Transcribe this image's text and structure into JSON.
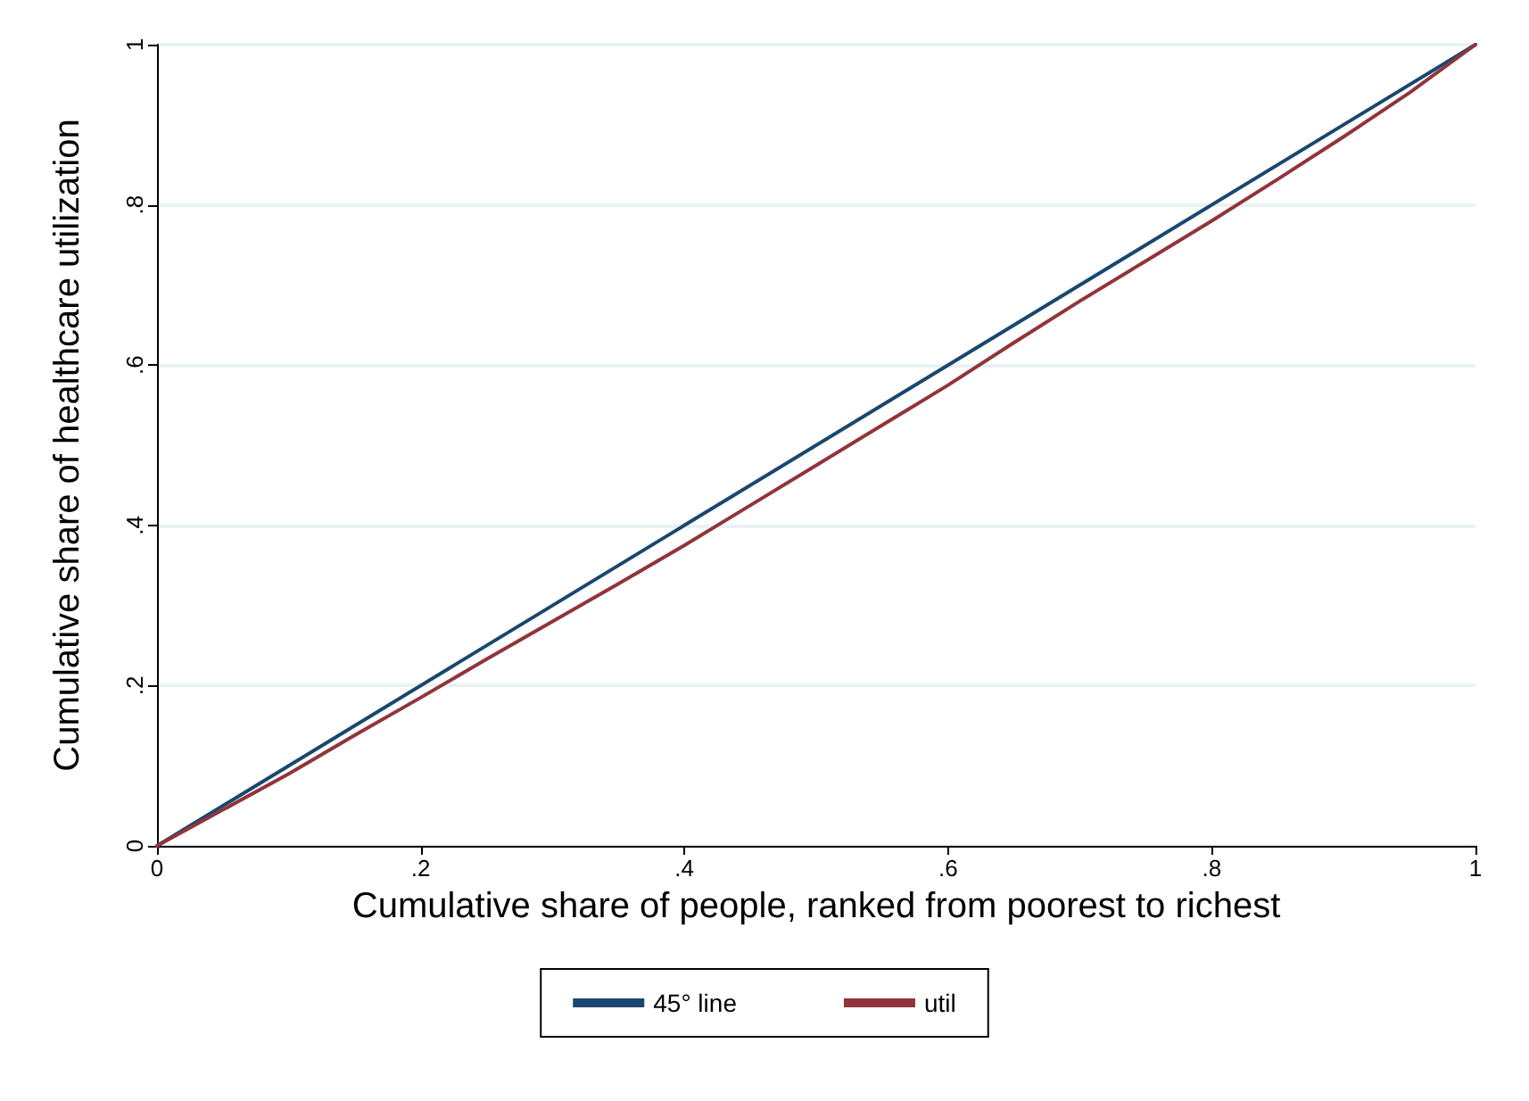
{
  "chart_data": {
    "type": "line",
    "xlabel": "Cumulative share of people, ranked from poorest to richest",
    "ylabel": "Cumulative share of healthcare utilization",
    "xlim": [
      0,
      1
    ],
    "ylim": [
      0,
      1
    ],
    "xticks": [
      0,
      {
        "value": 0.2,
        "label": ".2"
      },
      {
        "value": 0.4,
        "label": ".4"
      },
      {
        "value": 0.6,
        "label": ".6"
      },
      {
        "value": 0.8,
        "label": ".8"
      },
      1
    ],
    "yticks": [
      0,
      {
        "value": 0.2,
        "label": ".2"
      },
      {
        "value": 0.4,
        "label": ".4"
      },
      {
        "value": 0.6,
        "label": ".6"
      },
      {
        "value": 0.8,
        "label": ".8"
      },
      1
    ],
    "grid": "y",
    "legend": "bottom",
    "marker": "none",
    "line_style": "solid",
    "series": [
      {
        "name": "45° line",
        "color": "#1a476f",
        "x": [
          0,
          1
        ],
        "values": [
          0,
          1
        ]
      },
      {
        "name": "util",
        "color": "#90353b",
        "x": [
          0,
          0.05,
          0.1,
          0.15,
          0.2,
          0.25,
          0.3,
          0.35,
          0.4,
          0.45,
          0.5,
          0.55,
          0.6,
          0.65,
          0.7,
          0.75,
          0.8,
          0.85,
          0.9,
          0.95,
          1
        ],
        "values": [
          0,
          0.045,
          0.09,
          0.138,
          0.185,
          0.233,
          0.28,
          0.327,
          0.375,
          0.425,
          0.475,
          0.525,
          0.575,
          0.628,
          0.68,
          0.73,
          0.78,
          0.832,
          0.885,
          0.94,
          1
        ]
      }
    ]
  }
}
